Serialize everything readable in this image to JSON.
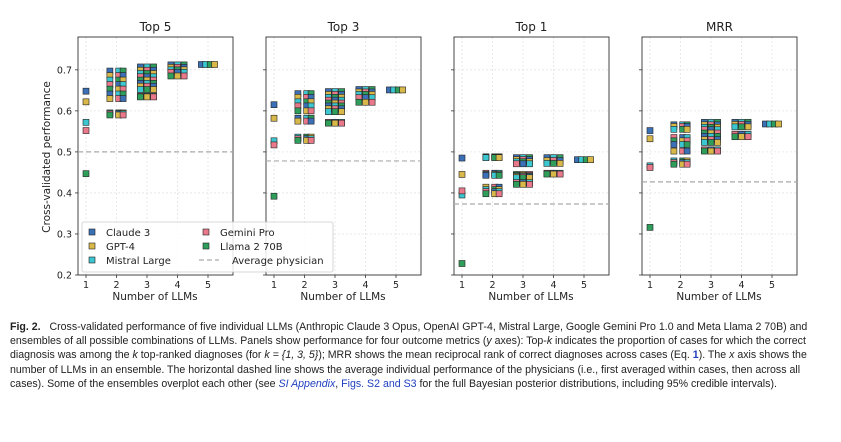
{
  "chart_data": {
    "type": "scatter",
    "ylabel": "Cross-validated performance",
    "xlabel": "Number of LLMs",
    "x_ticks": [
      "1",
      "2",
      "3",
      "4",
      "5"
    ],
    "ylim": [
      0.2,
      0.78
    ],
    "y_ticks": [
      "0.2",
      "0.3",
      "0.4",
      "0.5",
      "0.6",
      "0.7"
    ],
    "grid": true,
    "legend_placement": "lower-left of first panel",
    "colors": {
      "Claude 3": "#3b6fb6",
      "GPT-4": "#d9b84a",
      "Mistral Large": "#3cc6cf",
      "Gemini Pro": "#e8788a",
      "Llama 2 70B": "#2f9e5b",
      "average_line": "#aaaaaa"
    },
    "legend": [
      "Claude 3",
      "GPT-4",
      "Mistral Large",
      "Gemini Pro",
      "Llama 2 70B",
      "Average physician"
    ],
    "panels": [
      {
        "title": "Top 5",
        "average_physician": 0.5,
        "singles": {
          "Claude 3": 0.648,
          "GPT-4": 0.622,
          "Mistral Large": 0.572,
          "Gemini Pro": 0.552,
          "Llama 2 70B": 0.447
        },
        "ensembles": {
          "2": [
            0.697,
            0.686,
            0.675,
            0.664,
            0.653,
            0.641,
            0.63,
            0.595,
            0.593,
            0.59
          ],
          "3": [
            0.707,
            0.699,
            0.691,
            0.683,
            0.675,
            0.667,
            0.66,
            0.652,
            0.636,
            0.634
          ],
          "4": [
            0.712,
            0.706,
            0.7,
            0.694,
            0.685
          ],
          "5": [
            0.713
          ]
        }
      },
      {
        "title": "Top 3",
        "average_physician": 0.478,
        "singles": {
          "Claude 3": 0.615,
          "GPT-4": 0.582,
          "Mistral Large": 0.527,
          "Gemini Pro": 0.517,
          "Llama 2 70B": 0.392
        },
        "ensembles": {
          "2": [
            0.642,
            0.633,
            0.622,
            0.612,
            0.6,
            0.582,
            0.575,
            0.536,
            0.532,
            0.528
          ],
          "3": [
            0.647,
            0.64,
            0.633,
            0.626,
            0.619,
            0.612,
            0.605,
            0.598,
            0.572,
            0.57
          ],
          "4": [
            0.652,
            0.646,
            0.64,
            0.632,
            0.621
          ],
          "5": [
            0.651
          ]
        }
      },
      {
        "title": "Top 1",
        "average_physician": 0.373,
        "singles": {
          "Claude 3": 0.485,
          "GPT-4": 0.445,
          "Mistral Large": 0.395,
          "Gemini Pro": 0.405,
          "Llama 2 70B": 0.228
        },
        "ensembles": {
          "2": [
            0.488,
            0.487,
            0.486,
            0.448,
            0.445,
            0.443,
            0.414,
            0.408,
            0.403,
            0.398
          ],
          "3": [
            0.486,
            0.481,
            0.476,
            0.471,
            0.445,
            0.442,
            0.44,
            0.437,
            0.425,
            0.421
          ],
          "4": [
            0.486,
            0.479,
            0.472,
            0.448,
            0.446
          ],
          "5": [
            0.481
          ]
        }
      },
      {
        "title": "MRR",
        "average_physician": 0.427,
        "singles": {
          "Claude 3": 0.552,
          "GPT-4": 0.532,
          "Mistral Large": 0.466,
          "Gemini Pro": 0.462,
          "Llama 2 70B": 0.316
        },
        "ensembles": {
          "2": [
            0.566,
            0.562,
            0.555,
            0.535,
            0.527,
            0.518,
            0.502,
            0.478,
            0.474,
            0.47
          ],
          "3": [
            0.572,
            0.566,
            0.56,
            0.554,
            0.546,
            0.538,
            0.53,
            0.523,
            0.505,
            0.502
          ],
          "4": [
            0.572,
            0.567,
            0.561,
            0.543,
            0.537
          ],
          "5": [
            0.568
          ]
        }
      }
    ]
  },
  "caption": {
    "label": "Fig. 2.",
    "t1": "Cross-validated performance of five individual LLMs (Anthropic Claude 3 Opus, OpenAI GPT-4, Mistral Large, Google Gemini Pro 1.0 and Meta Llama 2 70B) and ensembles of all possible combinations of LLMs. Panels show performance for four outcome metrics (",
    "y": "y",
    "t2": " axes): Top-",
    "k1": "k",
    "t3": " indicates the proportion of cases for which the correct diagnosis was among the ",
    "k2": "k",
    "t4": " top-ranked diagnoses (for ",
    "kset": "k = {1, 3, 5}",
    "t5": "); MRR shows the mean reciprocal rank of correct diagnoses across cases (Eq. ",
    "eq": "1",
    "t6": "). The ",
    "x": "x",
    "t7": " axis shows the number of LLMs in an ensemble. The horizontal dashed line shows the average individual performance of the physicians (i.e., first averaged within cases, then across all cases). Some of the ensembles overplot each other (see ",
    "si": "SI Appendix",
    "t8": ", ",
    "figs": "Figs. S2 and S3",
    "t9": " for the full Bayesian posterior distributions, including 95% credible intervals)."
  }
}
